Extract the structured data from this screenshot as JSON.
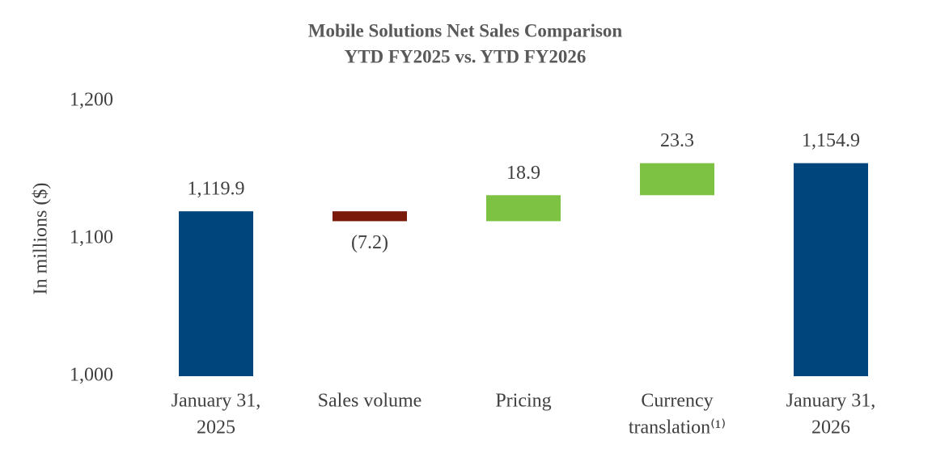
{
  "chart_data": {
    "type": "waterfall",
    "title": [
      "Mobile Solutions Net Sales Comparison",
      "YTD FY2025 vs. YTD FY2026"
    ],
    "ylabel": "In millions ($)",
    "categories": [
      [
        "January 31,",
        "2025"
      ],
      [
        "Sales volume"
      ],
      [
        "Pricing"
      ],
      [
        "Currency",
        "translation⁽¹⁾"
      ],
      [
        "January 31,",
        "2026"
      ]
    ],
    "measure": [
      "total",
      "relative",
      "relative",
      "relative",
      "total"
    ],
    "values": [
      1119.9,
      -7.2,
      18.9,
      23.3,
      1154.9
    ],
    "value_labels": [
      "1,119.9",
      "(7.2)",
      "18.9",
      "23.3",
      "1,154.9"
    ],
    "colors": [
      "#00457c",
      "#7a1a0a",
      "#7dc242",
      "#7dc242",
      "#00457c"
    ],
    "ylim": [
      1000,
      1200
    ],
    "yticks": [
      {
        "value": 1000,
        "label": "1,000"
      },
      {
        "value": 1100,
        "label": "1,100"
      },
      {
        "value": 1200,
        "label": "1,200"
      }
    ],
    "grid": false
  }
}
